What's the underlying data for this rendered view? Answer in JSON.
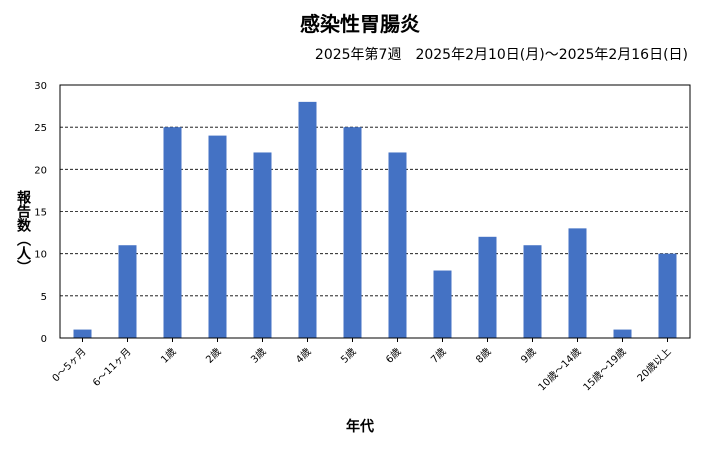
{
  "chart_data": {
    "type": "bar",
    "title": "感染性胃腸炎",
    "subtitle": "2025年第7週　2025年2月10日(月)〜2025年2月16日(日)",
    "xlabel": "年代",
    "ylabel": "報告数（人）",
    "categories": [
      "0〜5ヶ月",
      "6〜11ヶ月",
      "1歳",
      "2歳",
      "3歳",
      "4歳",
      "5歳",
      "6歳",
      "7歳",
      "8歳",
      "9歳",
      "10歳〜14歳",
      "15歳〜19歳",
      "20歳以上"
    ],
    "values": [
      1,
      11,
      25,
      24,
      22,
      28,
      25,
      22,
      8,
      12,
      11,
      13,
      1,
      10
    ],
    "ylim": [
      0,
      30
    ],
    "yticks": [
      0,
      5,
      10,
      15,
      20,
      25,
      30
    ],
    "grid": "horizontal-dashed",
    "bar_color": "#4472C4"
  }
}
